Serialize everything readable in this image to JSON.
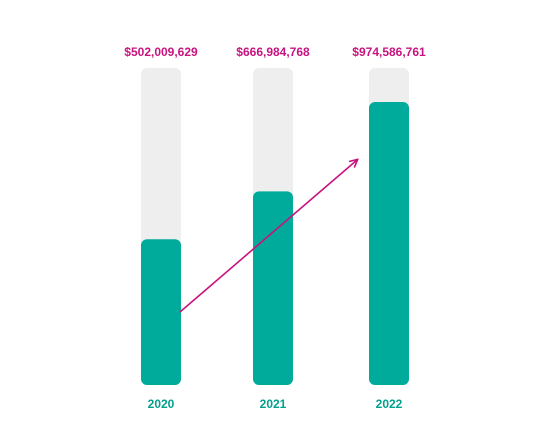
{
  "chart_data": {
    "type": "bar",
    "categories": [
      "2020",
      "2021",
      "2022"
    ],
    "values": [
      502009629,
      666984768,
      974586761
    ],
    "value_labels": [
      "$502,009,629",
      "$666,984,768",
      "$974,586,761"
    ],
    "color": "#00ab9b"
  }
}
